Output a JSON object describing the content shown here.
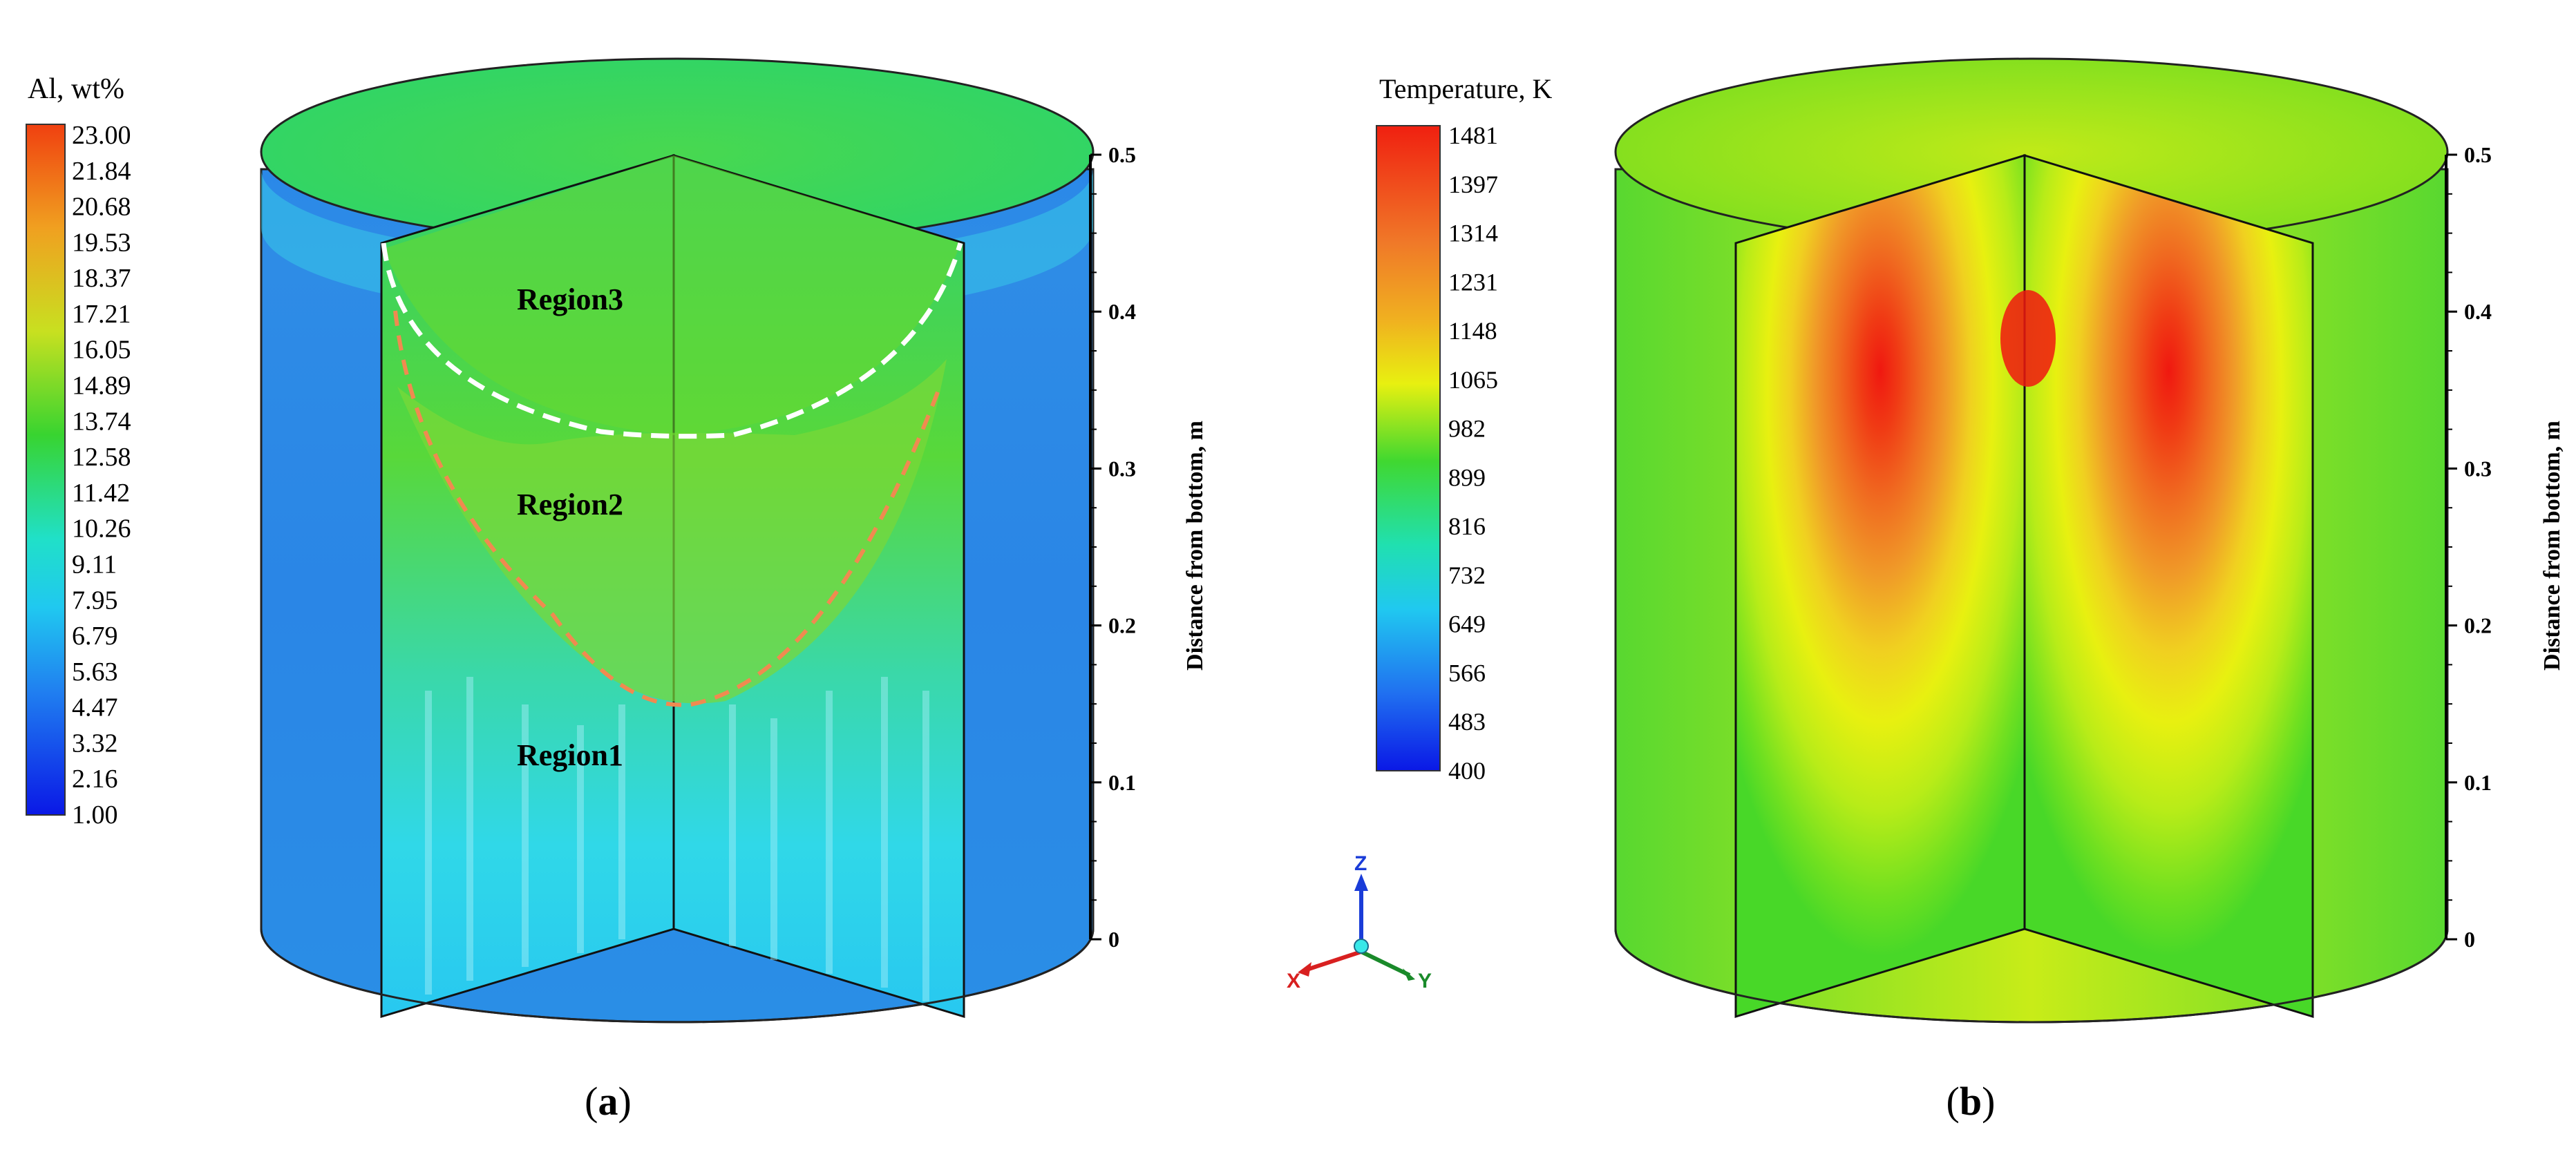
{
  "panel_a": {
    "colorbar_title": "Al, wt%",
    "colorbar_ticks": [
      "23.00",
      "21.84",
      "20.68",
      "19.53",
      "18.37",
      "17.21",
      "16.05",
      "14.89",
      "13.74",
      "12.58",
      "11.42",
      "10.26",
      "9.11",
      "7.95",
      "6.79",
      "5.63",
      "4.47",
      "3.32",
      "2.16",
      "1.00"
    ],
    "regions": {
      "region3": "Region3",
      "region2": "Region2",
      "region1": "Region1"
    },
    "axis_label": "Distance from bottom, m",
    "axis_ticks": [
      "0.5",
      "0.4",
      "0.3",
      "0.2",
      "0.1",
      "0"
    ],
    "caption_open": "(",
    "caption_letter": "a",
    "caption_close": ")"
  },
  "panel_b": {
    "colorbar_title": "Temperature, K",
    "colorbar_ticks": [
      "1481",
      "1397",
      "1314",
      "1231",
      "1148",
      "1065",
      "982",
      "899",
      "816",
      "732",
      "649",
      "566",
      "483",
      "400"
    ],
    "axis_label": "Distance from bottom, m",
    "axis_ticks": [
      "0.5",
      "0.4",
      "0.3",
      "0.2",
      "0.1",
      "0"
    ],
    "caption_open": "(",
    "caption_letter": "b",
    "caption_close": ")"
  },
  "triad": {
    "z": "Z",
    "x": "X",
    "y": "Y"
  },
  "colors": {
    "red": "#e8260f",
    "orange": "#f07820",
    "yellow": "#e6ee10",
    "green": "#38d430",
    "cyan": "#20d8e8",
    "blue": "#1e6ae8",
    "deep_blue": "#0a18e6",
    "dashed_white": "#ffffff",
    "dashed_orange": "#f08a50"
  }
}
